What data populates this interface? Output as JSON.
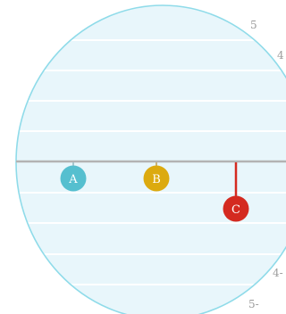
{
  "colors": {
    "ellipse_fill": "#e8f6fb",
    "ellipse_stroke": "#8fdbe9",
    "gridline": "#ffffff",
    "baseline": "#b3b3b3",
    "tick_label": "#9b9b9b",
    "marker_text": "#ffffff"
  },
  "tick_labels": {
    "top_1": "5",
    "top_2": "4",
    "bottom_1": "4-",
    "bottom_2": "5-"
  },
  "markers": [
    {
      "label": "A",
      "color": "#55bfcf",
      "stem_color": "#a7c6cd"
    },
    {
      "label": "B",
      "color": "#dcaa0f",
      "stem_color": "#c8b27a"
    },
    {
      "label": "C",
      "color": "#d42a20",
      "stem_color": "#d42a20"
    }
  ]
}
